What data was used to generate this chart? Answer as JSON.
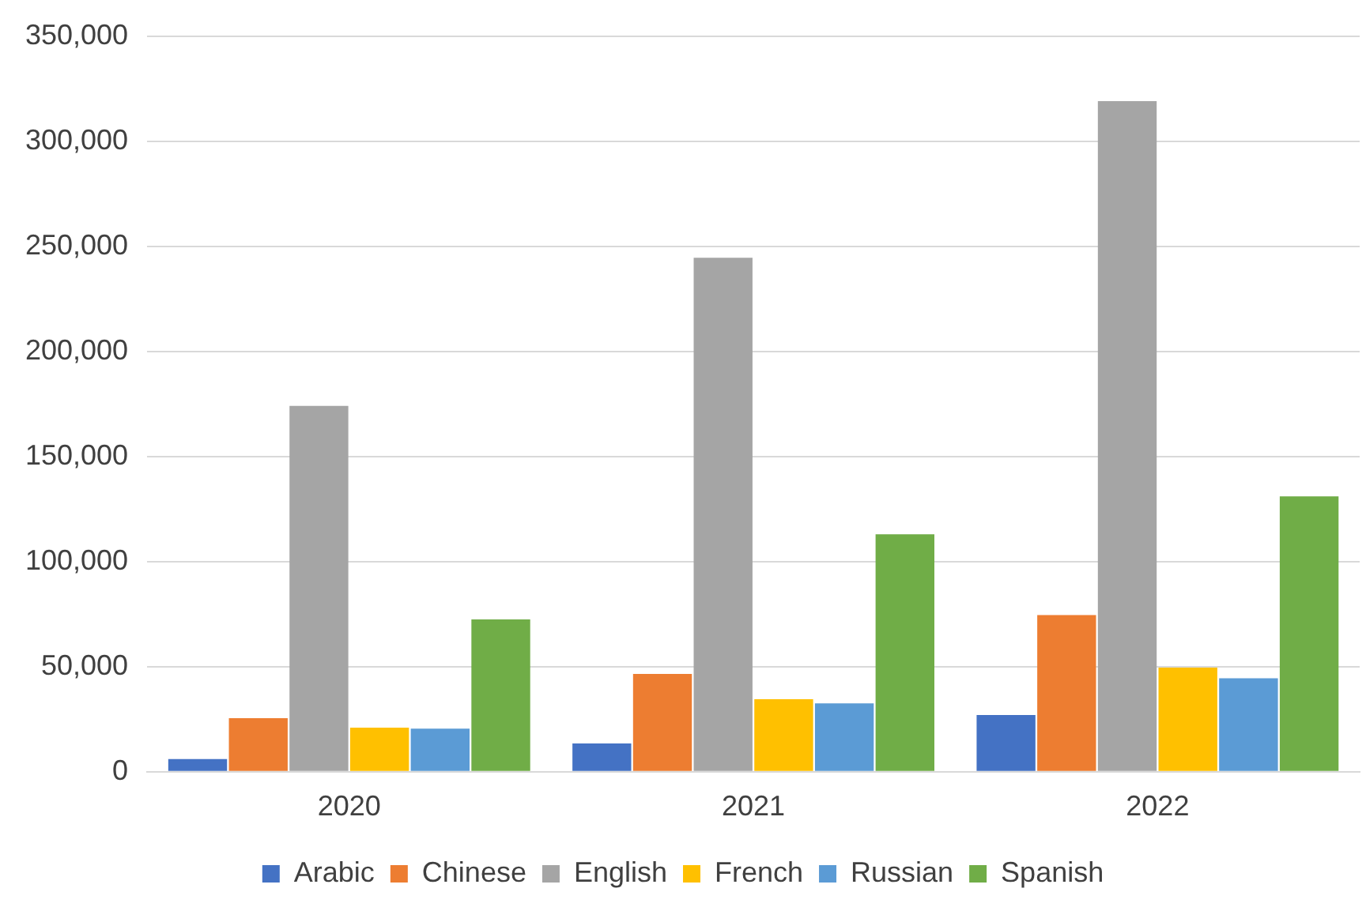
{
  "chart_data": {
    "type": "bar",
    "categories": [
      "2020",
      "2021",
      "2022"
    ],
    "series": [
      {
        "name": "Arabic",
        "color": "#4472c4",
        "values": [
          6000,
          13500,
          27000
        ]
      },
      {
        "name": "Chinese",
        "color": "#ed7d31",
        "values": [
          25500,
          46500,
          74500
        ]
      },
      {
        "name": "English",
        "color": "#a5a5a5",
        "values": [
          174000,
          244500,
          319000
        ]
      },
      {
        "name": "French",
        "color": "#ffc000",
        "values": [
          21000,
          34500,
          49500
        ]
      },
      {
        "name": "Russian",
        "color": "#5b9bd5",
        "values": [
          20500,
          32500,
          44500
        ]
      },
      {
        "name": "Spanish",
        "color": "#70ad47",
        "values": [
          72500,
          113000,
          131000
        ]
      }
    ],
    "ylim": [
      0,
      350000
    ],
    "yticks": [
      0,
      {
        "value": 50000,
        "label": "50,000"
      },
      {
        "value": 100000,
        "label": "100,000"
      },
      {
        "value": 150000,
        "label": "150,000"
      },
      {
        "value": 200000,
        "label": "200,000"
      },
      {
        "value": 250000,
        "label": "250,000"
      },
      {
        "value": 300000,
        "label": "300,000"
      },
      {
        "value": 350000,
        "label": "350,000"
      }
    ],
    "grid": "y",
    "legend": "bottom"
  }
}
